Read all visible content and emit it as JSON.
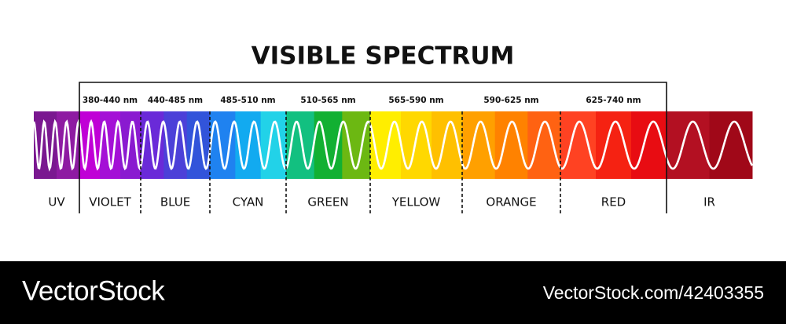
{
  "title": "VISIBLE SPECTRUM",
  "bands": [
    {
      "label": "UV"
    },
    {
      "label": "VIOLET",
      "range": "380-440 nm"
    },
    {
      "label": "BLUE",
      "range": "440-485 nm"
    },
    {
      "label": "CYAN",
      "range": "485-510 nm"
    },
    {
      "label": "GREEN",
      "range": "510-565 nm"
    },
    {
      "label": "YELLOW",
      "range": "565-590 nm"
    },
    {
      "label": "ORANGE",
      "range": "590-625 nm"
    },
    {
      "label": "RED",
      "range": "625-740 nm"
    },
    {
      "label": "IR"
    }
  ],
  "footer": {
    "brand": "VectorStock",
    "id": "VectorStock.com/42403355"
  }
}
